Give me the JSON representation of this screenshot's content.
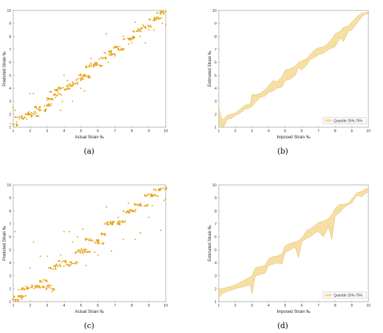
{
  "colors": {
    "marker": "#E8A317",
    "band_fill": "#F6DFA5",
    "band_edge": "#E3B34F",
    "axis": "#888888"
  },
  "chart_data": [
    {
      "type": "scatter",
      "panel": "(a)",
      "xlabel": "Actual Strain ‰",
      "ylabel": "Predicted Strain ‰",
      "xlim": [
        1,
        10
      ],
      "ylim": [
        1,
        10
      ],
      "xticks": [
        "1",
        "2",
        "3",
        "4",
        "5",
        "6",
        "7",
        "8",
        "9",
        "10"
      ],
      "yticks": [
        "1",
        "2",
        "3",
        "4",
        "5",
        "6",
        "7",
        "8",
        "9",
        "10"
      ],
      "clusters": [
        [
          1.1,
          1.2
        ],
        [
          1.3,
          1.8
        ],
        [
          1.6,
          1.7
        ],
        [
          1.8,
          2.0
        ],
        [
          2.1,
          2.1
        ],
        [
          2.3,
          1.9
        ],
        [
          2.5,
          2.5
        ],
        [
          2.7,
          2.3
        ],
        [
          3.0,
          2.7
        ],
        [
          3.2,
          3.2
        ],
        [
          3.4,
          3.8
        ],
        [
          3.6,
          3.5
        ],
        [
          3.8,
          4.0
        ],
        [
          4.1,
          3.9
        ],
        [
          4.3,
          4.2
        ],
        [
          4.6,
          4.4
        ],
        [
          4.9,
          4.7
        ],
        [
          5.1,
          5.0
        ],
        [
          5.3,
          4.9
        ],
        [
          5.5,
          5.7
        ],
        [
          5.8,
          5.9
        ],
        [
          6.0,
          5.8
        ],
        [
          6.3,
          6.3
        ],
        [
          6.6,
          6.8
        ],
        [
          6.8,
          6.6
        ],
        [
          7.1,
          7.2
        ],
        [
          7.4,
          7.0
        ],
        [
          7.7,
          7.8
        ],
        [
          8.0,
          7.9
        ],
        [
          8.3,
          8.4
        ],
        [
          8.6,
          8.6
        ],
        [
          8.9,
          8.8
        ],
        [
          9.2,
          9.3
        ],
        [
          9.5,
          9.4
        ],
        [
          9.7,
          9.8
        ],
        [
          9.9,
          9.9
        ]
      ],
      "outliers": [
        [
          1.0,
          2.5
        ],
        [
          1.1,
          2.3
        ],
        [
          1.2,
          1.4
        ],
        [
          2.0,
          3.6
        ],
        [
          2.2,
          3.6
        ],
        [
          3.0,
          3.1
        ],
        [
          3.5,
          3.3
        ],
        [
          3.8,
          2.3
        ],
        [
          3.9,
          3.0
        ],
        [
          4.0,
          5.0
        ],
        [
          4.2,
          4.6
        ],
        [
          4.5,
          3.0
        ],
        [
          5.0,
          5.1
        ],
        [
          5.0,
          4.0
        ],
        [
          5.2,
          3.8
        ],
        [
          5.6,
          6.3
        ],
        [
          6.5,
          8.2
        ],
        [
          6.6,
          6.0
        ],
        [
          6.8,
          6.9
        ],
        [
          7.0,
          6.5
        ],
        [
          7.5,
          8.0
        ],
        [
          7.8,
          7.4
        ],
        [
          8.0,
          7.5
        ],
        [
          8.2,
          9.1
        ],
        [
          8.5,
          8.0
        ],
        [
          8.8,
          7.5
        ],
        [
          9.3,
          8.5
        ],
        [
          9.8,
          9.0
        ],
        [
          10.0,
          8.9
        ],
        [
          9.0,
          8.5
        ]
      ]
    },
    {
      "type": "area",
      "panel": "(b)",
      "xlabel": "Imposed Strain ‰",
      "ylabel": "Estimated Strain ‰",
      "xlim": [
        1,
        10
      ],
      "ylim": [
        1,
        10
      ],
      "xticks": [
        "1",
        "2",
        "3",
        "4",
        "5",
        "6",
        "7",
        "8",
        "9",
        "10"
      ],
      "yticks": [
        "1",
        "2",
        "3",
        "4",
        "5",
        "6",
        "7",
        "8",
        "9",
        "10"
      ],
      "legend": {
        "label": "Quantile 25%-75%",
        "placement": "lower-right"
      },
      "x": [
        1.0,
        1.15,
        1.3,
        1.5,
        1.8,
        2.0,
        2.3,
        2.6,
        2.9,
        3.0,
        3.2,
        3.5,
        3.8,
        4.0,
        4.3,
        4.5,
        4.8,
        5.0,
        5.3,
        5.6,
        5.8,
        6.0,
        6.3,
        6.5,
        6.8,
        7.0,
        7.3,
        7.6,
        7.8,
        8.0,
        8.3,
        8.5,
        8.8,
        9.0,
        9.3,
        9.6,
        9.8,
        10.0
      ],
      "lower": [
        1.2,
        1.1,
        1.0,
        1.6,
        1.7,
        1.9,
        2.1,
        2.4,
        2.5,
        2.6,
        2.9,
        3.3,
        3.4,
        3.7,
        3.8,
        4.0,
        4.1,
        4.6,
        4.7,
        5.0,
        5.6,
        5.4,
        5.8,
        6.2,
        6.4,
        6.6,
        6.7,
        7.0,
        7.1,
        7.2,
        7.9,
        7.6,
        8.4,
        8.5,
        9.0,
        9.5,
        9.7,
        9.8
      ],
      "upper": [
        2.6,
        1.7,
        1.6,
        1.9,
        2.0,
        2.1,
        2.4,
        2.7,
        2.8,
        3.5,
        3.5,
        3.6,
        3.9,
        4.2,
        4.6,
        4.5,
        4.9,
        5.4,
        5.5,
        5.7,
        6.0,
        6.1,
        6.3,
        6.6,
        7.0,
        7.1,
        7.2,
        7.5,
        7.8,
        8.2,
        8.4,
        8.7,
        8.8,
        9.1,
        9.5,
        9.8,
        9.8,
        9.9
      ]
    },
    {
      "type": "scatter",
      "panel": "(c)",
      "xlabel": "Actual Strain ‰",
      "ylabel": "Predicted Strain ‰",
      "xlim": [
        1,
        10
      ],
      "ylim": [
        1,
        10
      ],
      "xticks": [
        "1",
        "2",
        "3",
        "4",
        "5",
        "6",
        "7",
        "8",
        "9",
        "10"
      ],
      "yticks": [
        "1",
        "2",
        "3",
        "4",
        "5",
        "6",
        "7",
        "8",
        "9",
        "10"
      ],
      "clusters": [
        [
          1.1,
          1.1
        ],
        [
          1.3,
          1.4
        ],
        [
          1.6,
          1.4
        ],
        [
          1.7,
          2.0
        ],
        [
          2.0,
          2.1
        ],
        [
          2.3,
          2.2
        ],
        [
          2.6,
          2.1
        ],
        [
          2.8,
          2.6
        ],
        [
          3.0,
          2.2
        ],
        [
          3.2,
          2.0
        ],
        [
          3.3,
          3.6
        ],
        [
          3.6,
          3.8
        ],
        [
          3.9,
          4.1
        ],
        [
          4.2,
          3.8
        ],
        [
          4.6,
          4.0
        ],
        [
          4.9,
          4.8
        ],
        [
          5.1,
          5.0
        ],
        [
          5.3,
          4.8
        ],
        [
          5.5,
          5.8
        ],
        [
          5.8,
          5.7
        ],
        [
          6.1,
          5.5
        ],
        [
          6.4,
          6.2
        ],
        [
          6.6,
          7.0
        ],
        [
          6.8,
          7.1
        ],
        [
          7.1,
          7.0
        ],
        [
          7.4,
          7.2
        ],
        [
          7.7,
          7.9
        ],
        [
          8.0,
          8.0
        ],
        [
          8.4,
          8.5
        ],
        [
          8.7,
          8.4
        ],
        [
          9.0,
          9.2
        ],
        [
          9.3,
          9.2
        ],
        [
          9.5,
          9.6
        ],
        [
          9.8,
          9.7
        ]
      ],
      "outliers": [
        [
          1.1,
          6.4
        ],
        [
          1.3,
          1.9
        ],
        [
          1.5,
          1.2
        ],
        [
          2.0,
          3.6
        ],
        [
          2.2,
          5.6
        ],
        [
          2.6,
          4.5
        ],
        [
          2.8,
          2.7
        ],
        [
          3.0,
          4.5
        ],
        [
          3.3,
          1.8
        ],
        [
          3.8,
          4.6
        ],
        [
          4.0,
          6.4
        ],
        [
          4.3,
          6.4
        ],
        [
          4.5,
          5.6
        ],
        [
          4.8,
          6.0
        ],
        [
          5.1,
          6.6
        ],
        [
          5.3,
          3.8
        ],
        [
          5.8,
          4.8
        ],
        [
          6.0,
          4.6
        ],
        [
          6.5,
          8.3
        ],
        [
          6.8,
          4.9
        ],
        [
          7.2,
          7.5
        ],
        [
          7.5,
          5.8
        ],
        [
          7.8,
          8.6
        ],
        [
          8.2,
          5.8
        ],
        [
          8.5,
          6.3
        ],
        [
          9.0,
          7.5
        ],
        [
          9.7,
          6.5
        ],
        [
          9.9,
          8.8
        ],
        [
          10.0,
          8.9
        ],
        [
          9.2,
          8.4
        ]
      ]
    },
    {
      "type": "area",
      "panel": "(d)",
      "xlabel": "Imposed Strain ‰",
      "ylabel": "Estimated Strain ‰",
      "xlim": [
        1,
        10
      ],
      "ylim": [
        1,
        10
      ],
      "xticks": [
        "1",
        "2",
        "3",
        "4",
        "5",
        "6",
        "7",
        "8",
        "9",
        "10"
      ],
      "yticks": [
        "1",
        "2",
        "3",
        "4",
        "5",
        "6",
        "7",
        "8",
        "9",
        "10"
      ],
      "legend": {
        "label": "Quantile 25%-75%",
        "placement": "lower-right"
      },
      "x": [
        1.0,
        1.2,
        1.5,
        1.8,
        2.0,
        2.3,
        2.6,
        2.9,
        3.0,
        3.2,
        3.5,
        3.8,
        4.0,
        4.3,
        4.5,
        4.8,
        5.0,
        5.3,
        5.6,
        5.8,
        6.0,
        6.3,
        6.5,
        6.8,
        7.0,
        7.3,
        7.6,
        7.8,
        8.0,
        8.3,
        8.5,
        8.8,
        9.0,
        9.3,
        9.6,
        9.8,
        10.0
      ],
      "lower": [
        1.3,
        1.6,
        1.8,
        1.9,
        2.0,
        2.1,
        2.2,
        2.3,
        1.6,
        3.0,
        3.1,
        3.2,
        3.8,
        3.9,
        4.0,
        3.9,
        4.8,
        5.0,
        5.2,
        4.4,
        5.6,
        5.9,
        6.0,
        6.3,
        6.4,
        6.0,
        6.8,
        5.8,
        7.6,
        7.9,
        8.2,
        8.5,
        8.6,
        9.2,
        9.1,
        9.3,
        9.5
      ],
      "upper": [
        2.0,
        2.0,
        2.1,
        2.2,
        2.3,
        2.5,
        2.7,
        2.9,
        3.0,
        3.6,
        3.7,
        3.8,
        4.3,
        4.5,
        4.5,
        4.7,
        5.3,
        5.5,
        5.6,
        5.7,
        5.9,
        6.5,
        6.6,
        6.9,
        7.1,
        7.2,
        7.4,
        7.7,
        8.2,
        8.5,
        8.5,
        8.6,
        8.9,
        9.4,
        9.5,
        9.7,
        9.7
      ]
    }
  ],
  "captions": [
    "(a)",
    "(b)",
    "(c)",
    "(d)"
  ]
}
